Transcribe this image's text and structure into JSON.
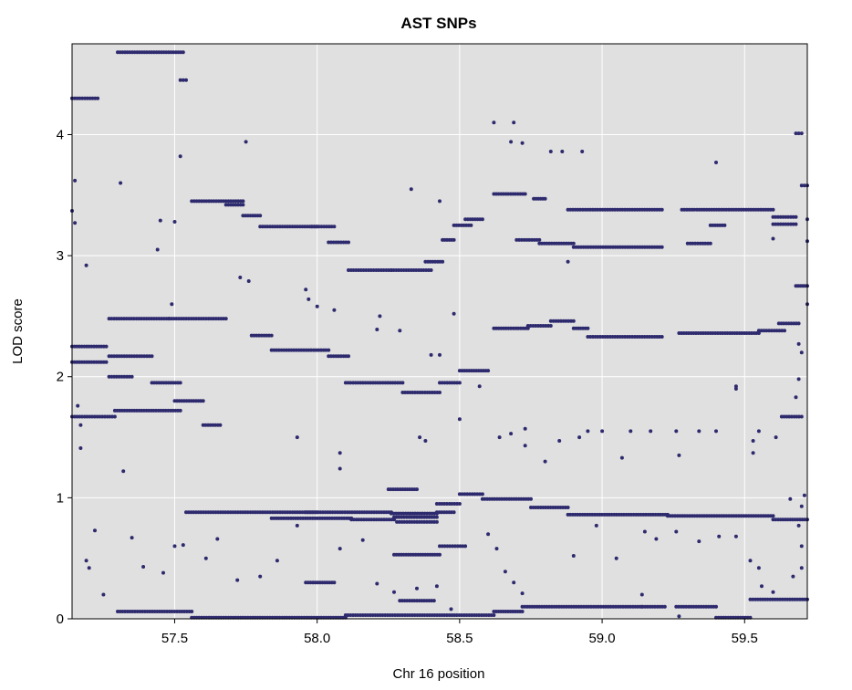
{
  "chart_data": {
    "type": "scatter",
    "title": "AST SNPs",
    "xlabel": "Chr 16 position",
    "ylabel": "LOD score",
    "xlim": [
      57.14,
      59.72
    ],
    "ylim": [
      0,
      4.75
    ],
    "xticks": [
      57.5,
      58.0,
      58.5,
      59.0,
      59.5
    ],
    "xtick_labels": [
      "57.5",
      "58.0",
      "58.5",
      "59.0",
      "59.5"
    ],
    "yticks": [
      0,
      1,
      2,
      3,
      4
    ],
    "ytick_labels": [
      "0",
      "1",
      "2",
      "3",
      "4"
    ],
    "grid": true,
    "background": "#e0e0e0",
    "grid_color": "#ffffff",
    "point_color": "#2e2a6e",
    "segments": [
      [
        57.14,
        57.23,
        4.3
      ],
      [
        57.3,
        57.53,
        4.68
      ],
      [
        57.52,
        57.54,
        4.45
      ],
      [
        57.14,
        57.26,
        2.25
      ],
      [
        57.14,
        57.26,
        2.12
      ],
      [
        57.27,
        57.48,
        2.48
      ],
      [
        57.48,
        57.68,
        2.48
      ],
      [
        57.27,
        57.42,
        2.17
      ],
      [
        57.14,
        57.29,
        1.67
      ],
      [
        57.29,
        57.52,
        1.72
      ],
      [
        57.27,
        57.35,
        2.0
      ],
      [
        57.42,
        57.52,
        1.95
      ],
      [
        57.5,
        57.6,
        1.8
      ],
      [
        57.6,
        57.66,
        1.6
      ],
      [
        57.56,
        57.74,
        3.45
      ],
      [
        57.68,
        57.74,
        3.42
      ],
      [
        57.74,
        57.8,
        3.33
      ],
      [
        57.8,
        58.0,
        3.24
      ],
      [
        57.98,
        58.06,
        3.24
      ],
      [
        58.04,
        58.11,
        3.11
      ],
      [
        57.77,
        57.84,
        2.34
      ],
      [
        57.84,
        58.04,
        2.22
      ],
      [
        58.04,
        58.11,
        2.17
      ],
      [
        58.11,
        58.26,
        2.88
      ],
      [
        58.26,
        58.4,
        2.88
      ],
      [
        58.38,
        58.44,
        2.95
      ],
      [
        58.44,
        58.48,
        3.13
      ],
      [
        58.48,
        58.54,
        3.25
      ],
      [
        58.52,
        58.58,
        3.3
      ],
      [
        58.1,
        58.3,
        1.95
      ],
      [
        58.3,
        58.43,
        1.87
      ],
      [
        58.43,
        58.5,
        1.95
      ],
      [
        58.5,
        58.6,
        2.05
      ],
      [
        58.62,
        58.73,
        3.51
      ],
      [
        58.76,
        58.8,
        3.47
      ],
      [
        58.7,
        58.78,
        3.13
      ],
      [
        58.78,
        58.9,
        3.1
      ],
      [
        58.9,
        59.21,
        3.07
      ],
      [
        58.88,
        59.21,
        3.38
      ],
      [
        59.28,
        59.6,
        3.38
      ],
      [
        59.6,
        59.68,
        3.32
      ],
      [
        59.6,
        59.68,
        3.26
      ],
      [
        59.3,
        59.38,
        3.1
      ],
      [
        59.38,
        59.43,
        3.25
      ],
      [
        58.62,
        58.74,
        2.4
      ],
      [
        58.74,
        58.82,
        2.42
      ],
      [
        58.82,
        58.9,
        2.46
      ],
      [
        58.9,
        58.95,
        2.4
      ],
      [
        58.95,
        59.21,
        2.33
      ],
      [
        59.27,
        59.55,
        2.36
      ],
      [
        59.55,
        59.64,
        2.38
      ],
      [
        59.62,
        59.69,
        2.44
      ],
      [
        59.63,
        59.7,
        1.67
      ],
      [
        59.68,
        59.72,
        2.75
      ],
      [
        59.7,
        59.72,
        3.58
      ],
      [
        59.68,
        59.7,
        4.01
      ],
      [
        57.54,
        58.0,
        0.88
      ],
      [
        57.96,
        58.26,
        0.88
      ],
      [
        58.26,
        58.42,
        0.87
      ],
      [
        57.84,
        58.12,
        0.83
      ],
      [
        58.12,
        58.27,
        0.82
      ],
      [
        58.27,
        58.42,
        0.84
      ],
      [
        58.28,
        58.42,
        0.8
      ],
      [
        58.42,
        58.48,
        0.88
      ],
      [
        58.42,
        58.5,
        0.95
      ],
      [
        58.5,
        58.58,
        1.03
      ],
      [
        58.58,
        58.75,
        0.99
      ],
      [
        58.75,
        58.88,
        0.92
      ],
      [
        58.88,
        59.23,
        0.86
      ],
      [
        59.23,
        59.6,
        0.85
      ],
      [
        59.6,
        59.72,
        0.82
      ],
      [
        58.27,
        58.43,
        0.53
      ],
      [
        58.43,
        58.52,
        0.6
      ],
      [
        58.25,
        58.35,
        1.07
      ],
      [
        58.29,
        58.41,
        0.15
      ],
      [
        57.96,
        58.06,
        0.3
      ],
      [
        57.3,
        57.56,
        0.06
      ],
      [
        57.56,
        58.1,
        0.01
      ],
      [
        58.1,
        58.62,
        0.03
      ],
      [
        58.62,
        58.72,
        0.06
      ],
      [
        58.72,
        59.22,
        0.1
      ],
      [
        59.26,
        59.4,
        0.1
      ],
      [
        59.4,
        59.52,
        0.01
      ],
      [
        59.52,
        59.72,
        0.16
      ]
    ],
    "points": [
      [
        57.15,
        3.62
      ],
      [
        57.14,
        3.37
      ],
      [
        57.15,
        3.27
      ],
      [
        57.19,
        2.92
      ],
      [
        57.31,
        3.6
      ],
      [
        57.44,
        3.05
      ],
      [
        57.52,
        3.82
      ],
      [
        57.49,
        2.6
      ],
      [
        57.5,
        3.28
      ],
      [
        57.45,
        3.29
      ],
      [
        57.75,
        3.94
      ],
      [
        57.73,
        2.82
      ],
      [
        57.76,
        2.79
      ],
      [
        57.96,
        2.72
      ],
      [
        57.97,
        2.64
      ],
      [
        58.0,
        2.58
      ],
      [
        58.06,
        2.55
      ],
      [
        58.22,
        2.5
      ],
      [
        58.21,
        2.39
      ],
      [
        58.29,
        2.38
      ],
      [
        58.33,
        3.55
      ],
      [
        58.43,
        3.45
      ],
      [
        58.48,
        2.52
      ],
      [
        58.4,
        2.18
      ],
      [
        58.43,
        2.18
      ],
      [
        58.62,
        4.1
      ],
      [
        58.68,
        3.94
      ],
      [
        58.69,
        4.1
      ],
      [
        58.72,
        3.93
      ],
      [
        58.82,
        3.86
      ],
      [
        58.86,
        3.86
      ],
      [
        58.93,
        3.86
      ],
      [
        59.4,
        3.77
      ],
      [
        58.88,
        2.95
      ],
      [
        59.6,
        3.14
      ],
      [
        59.47,
        1.9
      ],
      [
        59.47,
        1.92
      ],
      [
        59.53,
        1.47
      ],
      [
        59.53,
        1.37
      ],
      [
        59.61,
        1.5
      ],
      [
        58.57,
        1.92
      ],
      [
        58.64,
        1.5
      ],
      [
        58.68,
        1.53
      ],
      [
        58.73,
        1.57
      ],
      [
        58.73,
        1.43
      ],
      [
        58.8,
        1.3
      ],
      [
        58.85,
        1.47
      ],
      [
        58.92,
        1.5
      ],
      [
        58.95,
        1.55
      ],
      [
        59.0,
        1.55
      ],
      [
        59.07,
        1.33
      ],
      [
        59.1,
        1.55
      ],
      [
        59.17,
        1.55
      ],
      [
        59.26,
        1.55
      ],
      [
        59.27,
        1.35
      ],
      [
        59.34,
        1.55
      ],
      [
        59.4,
        1.55
      ],
      [
        59.55,
        1.55
      ],
      [
        58.36,
        1.5
      ],
      [
        58.38,
        1.47
      ],
      [
        58.5,
        1.65
      ],
      [
        58.08,
        1.24
      ],
      [
        58.08,
        1.37
      ],
      [
        57.93,
        1.5
      ],
      [
        57.32,
        1.22
      ],
      [
        57.17,
        1.41
      ],
      [
        57.17,
        1.6
      ],
      [
        57.16,
        1.76
      ],
      [
        57.22,
        0.73
      ],
      [
        57.19,
        0.48
      ],
      [
        57.2,
        0.42
      ],
      [
        57.25,
        0.2
      ],
      [
        57.35,
        0.67
      ],
      [
        57.39,
        0.43
      ],
      [
        57.46,
        0.38
      ],
      [
        57.5,
        0.6
      ],
      [
        57.53,
        0.61
      ],
      [
        57.61,
        0.5
      ],
      [
        57.65,
        0.66
      ],
      [
        57.72,
        0.32
      ],
      [
        57.8,
        0.35
      ],
      [
        57.86,
        0.48
      ],
      [
        57.93,
        0.77
      ],
      [
        58.08,
        0.58
      ],
      [
        58.16,
        0.65
      ],
      [
        58.21,
        0.29
      ],
      [
        58.27,
        0.22
      ],
      [
        58.35,
        0.25
      ],
      [
        58.42,
        0.27
      ],
      [
        58.47,
        0.08
      ],
      [
        58.6,
        0.7
      ],
      [
        58.63,
        0.58
      ],
      [
        58.66,
        0.39
      ],
      [
        58.69,
        0.3
      ],
      [
        58.72,
        0.21
      ],
      [
        58.9,
        0.52
      ],
      [
        58.98,
        0.77
      ],
      [
        59.05,
        0.5
      ],
      [
        59.15,
        0.72
      ],
      [
        59.19,
        0.66
      ],
      [
        59.26,
        0.72
      ],
      [
        59.34,
        0.64
      ],
      [
        59.41,
        0.68
      ],
      [
        59.47,
        0.68
      ],
      [
        59.52,
        0.48
      ],
      [
        59.55,
        0.42
      ],
      [
        59.56,
        0.27
      ],
      [
        59.6,
        0.22
      ],
      [
        59.67,
        0.35
      ],
      [
        59.7,
        0.42
      ],
      [
        59.7,
        0.6
      ],
      [
        59.69,
        0.77
      ],
      [
        59.71,
        1.02
      ],
      [
        59.66,
        0.99
      ],
      [
        59.7,
        0.93
      ],
      [
        59.68,
        1.83
      ],
      [
        59.69,
        1.98
      ],
      [
        59.7,
        2.2
      ],
      [
        59.69,
        2.27
      ],
      [
        59.72,
        2.6
      ],
      [
        59.72,
        3.12
      ],
      [
        59.72,
        3.3
      ],
      [
        59.14,
        0.2
      ],
      [
        59.14,
        0.1
      ],
      [
        59.27,
        0.02
      ]
    ]
  }
}
